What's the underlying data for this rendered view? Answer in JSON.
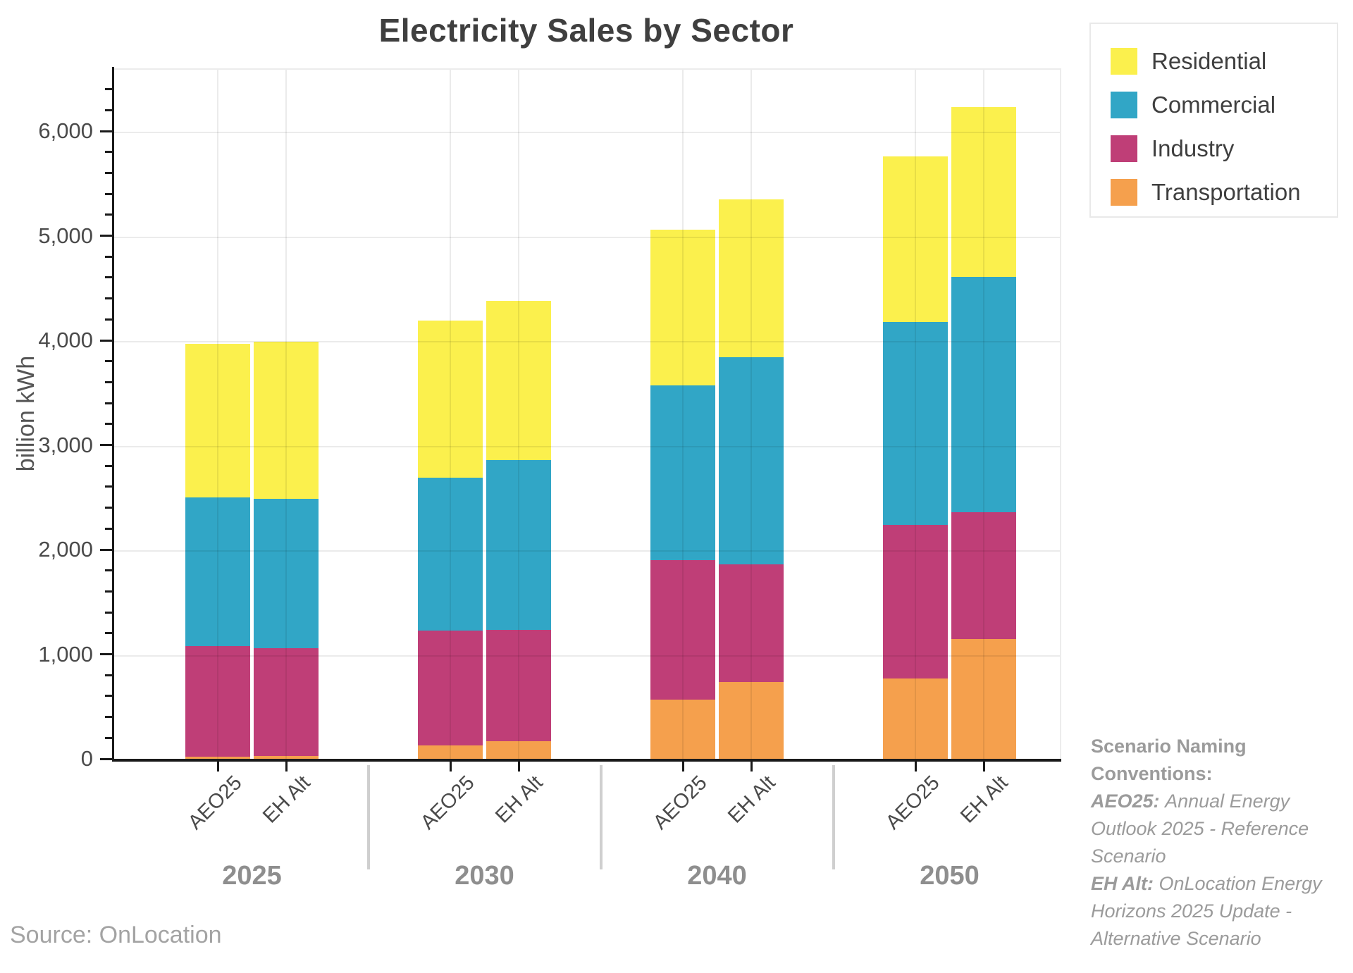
{
  "title": "Electricity Sales by Sector",
  "source": "Source: OnLocation",
  "note": {
    "heading": "Scenario Naming Conventions:",
    "entries": [
      {
        "term": "AEO25:",
        "desc": "Annual Energy Outlook 2025 - Reference Scenario"
      },
      {
        "term": "EH Alt:",
        "desc": "OnLocation Energy Horizons 2025 Update - Alternative Scenario"
      }
    ]
  },
  "chart_data": {
    "type": "bar",
    "stacked": true,
    "title": "Electricity Sales by Sector",
    "xlabel": "",
    "ylabel": "billion kWh",
    "ylim": [
      0,
      6600
    ],
    "y_major_tick": 1000,
    "y_minor_tick": 200,
    "y_tick_labels": [
      "0",
      "1,000",
      "2,000",
      "3,000",
      "4,000",
      "5,000",
      "6,000"
    ],
    "grid": true,
    "groups": [
      "2025",
      "2030",
      "2040",
      "2050"
    ],
    "bar_labels": [
      "AEO25",
      "EH Alt",
      "AEO25",
      "EH Alt",
      "AEO25",
      "EH Alt",
      "AEO25",
      "EH Alt"
    ],
    "series": [
      {
        "name": "Transportation",
        "color": "#F5A04D",
        "values": [
          35,
          40,
          140,
          180,
          580,
          750,
          780,
          1160
        ]
      },
      {
        "name": "Industry",
        "color": "#BF3E77",
        "values": [
          1055,
          1030,
          1100,
          1065,
          1330,
          1120,
          1470,
          1210
        ]
      },
      {
        "name": "Commercial",
        "color": "#31A6C6",
        "values": [
          1420,
          1430,
          1460,
          1625,
          1670,
          1980,
          1940,
          2250
        ]
      },
      {
        "name": "Residential",
        "color": "#FBF04D",
        "values": [
          1470,
          1500,
          1500,
          1520,
          1490,
          1510,
          1580,
          1620
        ]
      }
    ],
    "stack_order": "bottom_to_top",
    "totals": [
      3980,
      4000,
      4200,
      4390,
      5070,
      5360,
      5770,
      6240
    ],
    "legend": {
      "position": "top-right",
      "order_top_to_bottom": [
        "Residential",
        "Commercial",
        "Industry",
        "Transportation"
      ]
    }
  }
}
